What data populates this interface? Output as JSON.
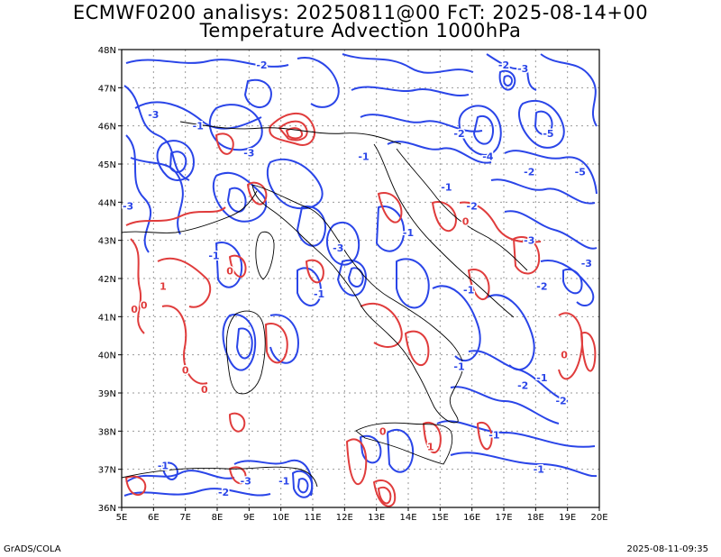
{
  "title_line1": "ECMWF0200 analisys: 20250811@00 FcT: 2025-08-14+00",
  "title_line2": "Temperature Advection 1000hPa",
  "lat_ticks": [
    "36N",
    "37N",
    "38N",
    "39N",
    "40N",
    "41N",
    "42N",
    "43N",
    "44N",
    "45N",
    "46N",
    "47N",
    "48N"
  ],
  "lon_ticks": [
    "5E",
    "6E",
    "7E",
    "8E",
    "9E",
    "10E",
    "11E",
    "12E",
    "13E",
    "14E",
    "15E",
    "16E",
    "17E",
    "18E",
    "19E",
    "20E"
  ],
  "footer_left": "GrADS/COLA",
  "footer_right": "2025-08-11-09:35",
  "colors": {
    "negative_contour": "#2a45e8",
    "positive_contour": "#e03c3c",
    "grid": "#9a9a9a",
    "coast": "#000000"
  },
  "contour_labels": [
    {
      "text": "-2",
      "lon": 9.4,
      "lat": 47.6,
      "sign": "neg"
    },
    {
      "text": "-2",
      "lon": 17.0,
      "lat": 47.6,
      "sign": "neg"
    },
    {
      "text": "-3",
      "lon": 17.6,
      "lat": 47.5,
      "sign": "neg"
    },
    {
      "text": "-3",
      "lon": 6.0,
      "lat": 46.3,
      "sign": "neg"
    },
    {
      "text": "-1",
      "lon": 7.4,
      "lat": 46.0,
      "sign": "neg"
    },
    {
      "text": "-3",
      "lon": 9.0,
      "lat": 45.3,
      "sign": "neg"
    },
    {
      "text": "-2",
      "lon": 15.6,
      "lat": 45.8,
      "sign": "neg"
    },
    {
      "text": "-5",
      "lon": 18.4,
      "lat": 45.8,
      "sign": "neg"
    },
    {
      "text": "-4",
      "lon": 16.5,
      "lat": 45.2,
      "sign": "neg"
    },
    {
      "text": "-2",
      "lon": 17.8,
      "lat": 44.8,
      "sign": "neg"
    },
    {
      "text": "-5",
      "lon": 19.4,
      "lat": 44.8,
      "sign": "neg"
    },
    {
      "text": "-1",
      "lon": 12.6,
      "lat": 45.2,
      "sign": "neg"
    },
    {
      "text": "-1",
      "lon": 15.2,
      "lat": 44.4,
      "sign": "neg"
    },
    {
      "text": "-2",
      "lon": 16.0,
      "lat": 43.9,
      "sign": "neg"
    },
    {
      "text": "-3",
      "lon": 5.2,
      "lat": 43.9,
      "sign": "neg"
    },
    {
      "text": "-1",
      "lon": 14.0,
      "lat": 43.2,
      "sign": "neg"
    },
    {
      "text": "-3",
      "lon": 17.8,
      "lat": 43.0,
      "sign": "neg"
    },
    {
      "text": "-3",
      "lon": 19.6,
      "lat": 42.4,
      "sign": "neg"
    },
    {
      "text": "-1",
      "lon": 7.9,
      "lat": 42.6,
      "sign": "neg"
    },
    {
      "text": "-3",
      "lon": 11.8,
      "lat": 42.8,
      "sign": "neg"
    },
    {
      "text": "-1",
      "lon": 11.2,
      "lat": 41.6,
      "sign": "neg"
    },
    {
      "text": "-2",
      "lon": 18.2,
      "lat": 41.8,
      "sign": "neg"
    },
    {
      "text": "-1",
      "lon": 15.9,
      "lat": 41.7,
      "sign": "neg"
    },
    {
      "text": "-1",
      "lon": 15.6,
      "lat": 39.7,
      "sign": "neg"
    },
    {
      "text": "-1",
      "lon": 18.2,
      "lat": 39.4,
      "sign": "neg"
    },
    {
      "text": "-2",
      "lon": 17.6,
      "lat": 39.2,
      "sign": "neg"
    },
    {
      "text": "-2",
      "lon": 18.8,
      "lat": 38.8,
      "sign": "neg"
    },
    {
      "text": "-1",
      "lon": 16.7,
      "lat": 37.9,
      "sign": "neg"
    },
    {
      "text": "-1",
      "lon": 18.1,
      "lat": 37.0,
      "sign": "neg"
    },
    {
      "text": "-1",
      "lon": 6.3,
      "lat": 37.1,
      "sign": "neg"
    },
    {
      "text": "-3",
      "lon": 8.9,
      "lat": 36.7,
      "sign": "neg"
    },
    {
      "text": "-2",
      "lon": 8.2,
      "lat": 36.4,
      "sign": "neg"
    },
    {
      "text": "-1",
      "lon": 10.1,
      "lat": 36.7,
      "sign": "neg"
    },
    {
      "text": "0",
      "lon": 5.7,
      "lat": 41.3,
      "sign": "pos"
    },
    {
      "text": "0",
      "lon": 5.4,
      "lat": 41.2,
      "sign": "pos"
    },
    {
      "text": "1",
      "lon": 6.3,
      "lat": 41.8,
      "sign": "pos"
    },
    {
      "text": "0",
      "lon": 7.0,
      "lat": 39.6,
      "sign": "pos"
    },
    {
      "text": "0",
      "lon": 7.6,
      "lat": 39.1,
      "sign": "pos"
    },
    {
      "text": "0",
      "lon": 8.4,
      "lat": 42.2,
      "sign": "pos"
    },
    {
      "text": "0",
      "lon": 15.8,
      "lat": 43.5,
      "sign": "pos"
    },
    {
      "text": "0",
      "lon": 18.9,
      "lat": 40.0,
      "sign": "pos"
    },
    {
      "text": "0",
      "lon": 13.2,
      "lat": 38.0,
      "sign": "pos"
    },
    {
      "text": "1",
      "lon": 14.7,
      "lat": 37.6,
      "sign": "pos"
    }
  ]
}
